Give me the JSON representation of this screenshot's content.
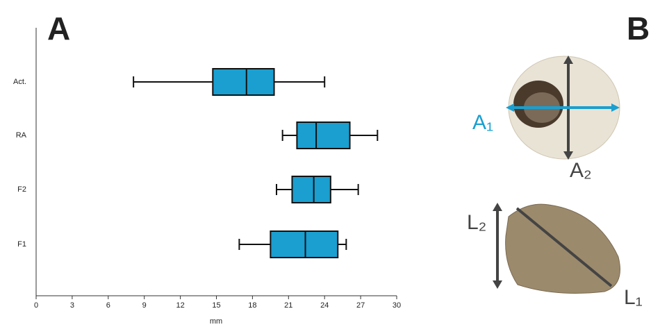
{
  "chart_data": {
    "type": "box",
    "panel_label": "A",
    "xlabel": "mm",
    "categories": [
      "Act.",
      "RA",
      "F2",
      "F1"
    ],
    "stats": [
      {
        "min": 8.1,
        "q1": 14.7,
        "median": 17.5,
        "q3": 19.8,
        "max": 24.0
      },
      {
        "min": 20.5,
        "q1": 21.7,
        "median": 23.3,
        "q3": 26.1,
        "max": 28.4
      },
      {
        "min": 20.0,
        "q1": 21.3,
        "median": 23.1,
        "q3": 24.5,
        "max": 26.8
      },
      {
        "min": 16.9,
        "q1": 19.5,
        "median": 22.4,
        "q3": 25.1,
        "max": 25.8
      }
    ],
    "color": "#1a9fd0",
    "xlim": [
      0,
      30
    ],
    "xticks": [
      0,
      3,
      6,
      9,
      12,
      15,
      18,
      21,
      24,
      27,
      30
    ]
  },
  "panel_b": {
    "label": "B",
    "annotations": [
      "A₁",
      "A₂",
      "L₂",
      "L₁"
    ]
  }
}
